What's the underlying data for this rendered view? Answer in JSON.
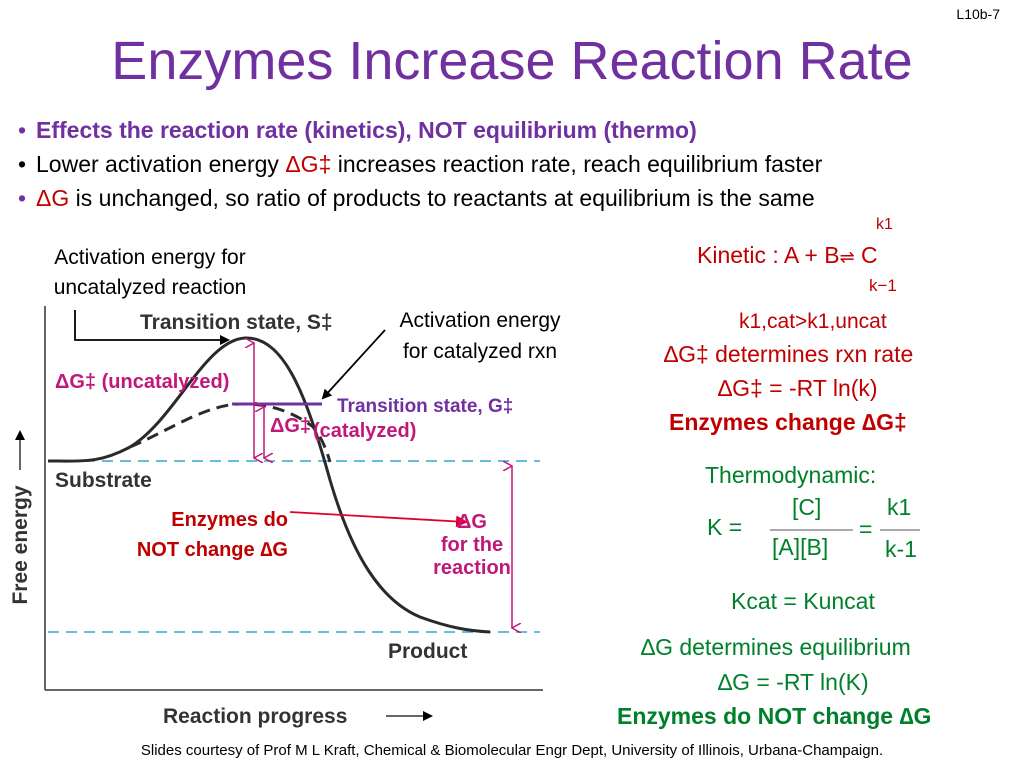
{
  "slide_number": "L10b-7",
  "title": "Enzymes Increase Reaction Rate",
  "bullets": [
    {
      "pre": "Effects the reaction rate (kinetics), NOT equilibrium (thermo)",
      "sym": "",
      "post": ""
    },
    {
      "pre": "Lower activation energy ",
      "sym": "ΔG‡",
      "post": " increases reaction rate, reach equilibrium faster"
    },
    {
      "pre": "",
      "sym": "ΔG",
      "post": " is unchanged, so ratio of products to reactants at equilibrium is the same"
    }
  ],
  "bullet_symbol": "•",
  "annotations": {
    "uncatalyzed_note": [
      "Activation energy for",
      "uncatalyzed reaction"
    ],
    "catalyzed_note": [
      "Activation energy",
      "for catalyzed rxn"
    ],
    "transition_state_g": "Transition state, G‡",
    "no_change": [
      "Enzymes do",
      "NOT change ∆G"
    ]
  },
  "diagram": {
    "transition_state": "Transition state, S‡",
    "dg_uncatalyzed": "ΔG‡ (uncatalyzed)",
    "dg_catalyzed_1": "ΔG‡",
    "dg_catalyzed_2": "(catalyzed)",
    "substrate": "Substrate",
    "product": "Product",
    "dg_reaction": [
      "ΔG",
      "for the",
      "reaction"
    ],
    "ylabel": "Free energy",
    "xlabel": "Reaction progress"
  },
  "kinetic": {
    "k_forward": "k1",
    "label": "Kinetic : A + B",
    "arrows": "⇌",
    "product": "C",
    "k_reverse": "k−1",
    "k_compare": "k1,cat>k1,uncat",
    "line1": "∆G‡ determines rxn rate",
    "line2": "∆G‡ = -RT ln(k)",
    "line3": "Enzymes change ∆G‡"
  },
  "thermo": {
    "heading": "Thermodynamic:",
    "K": "K =",
    "numerator": "[C]",
    "denominator": "[A][B]",
    "equals": "=",
    "k_num": "k1",
    "k_den": "k-1",
    "kcat": "Kcat = Kuncat",
    "line1": "∆G determines equilibrium",
    "line2": "∆G = -RT ln(K)",
    "line3": "Enzymes do NOT change ∆G"
  },
  "footer": "Slides courtesy of Prof M L Kraft, Chemical & Biomolecular Engr Dept, University of Illinois, Urbana-Champaign.",
  "colors": {
    "title": "#7030a0",
    "accent_red": "#c00000",
    "accent_green": "#00802b",
    "magenta": "#c0187a",
    "dashed": "#4fb3d9",
    "purple": "#7030a0"
  }
}
